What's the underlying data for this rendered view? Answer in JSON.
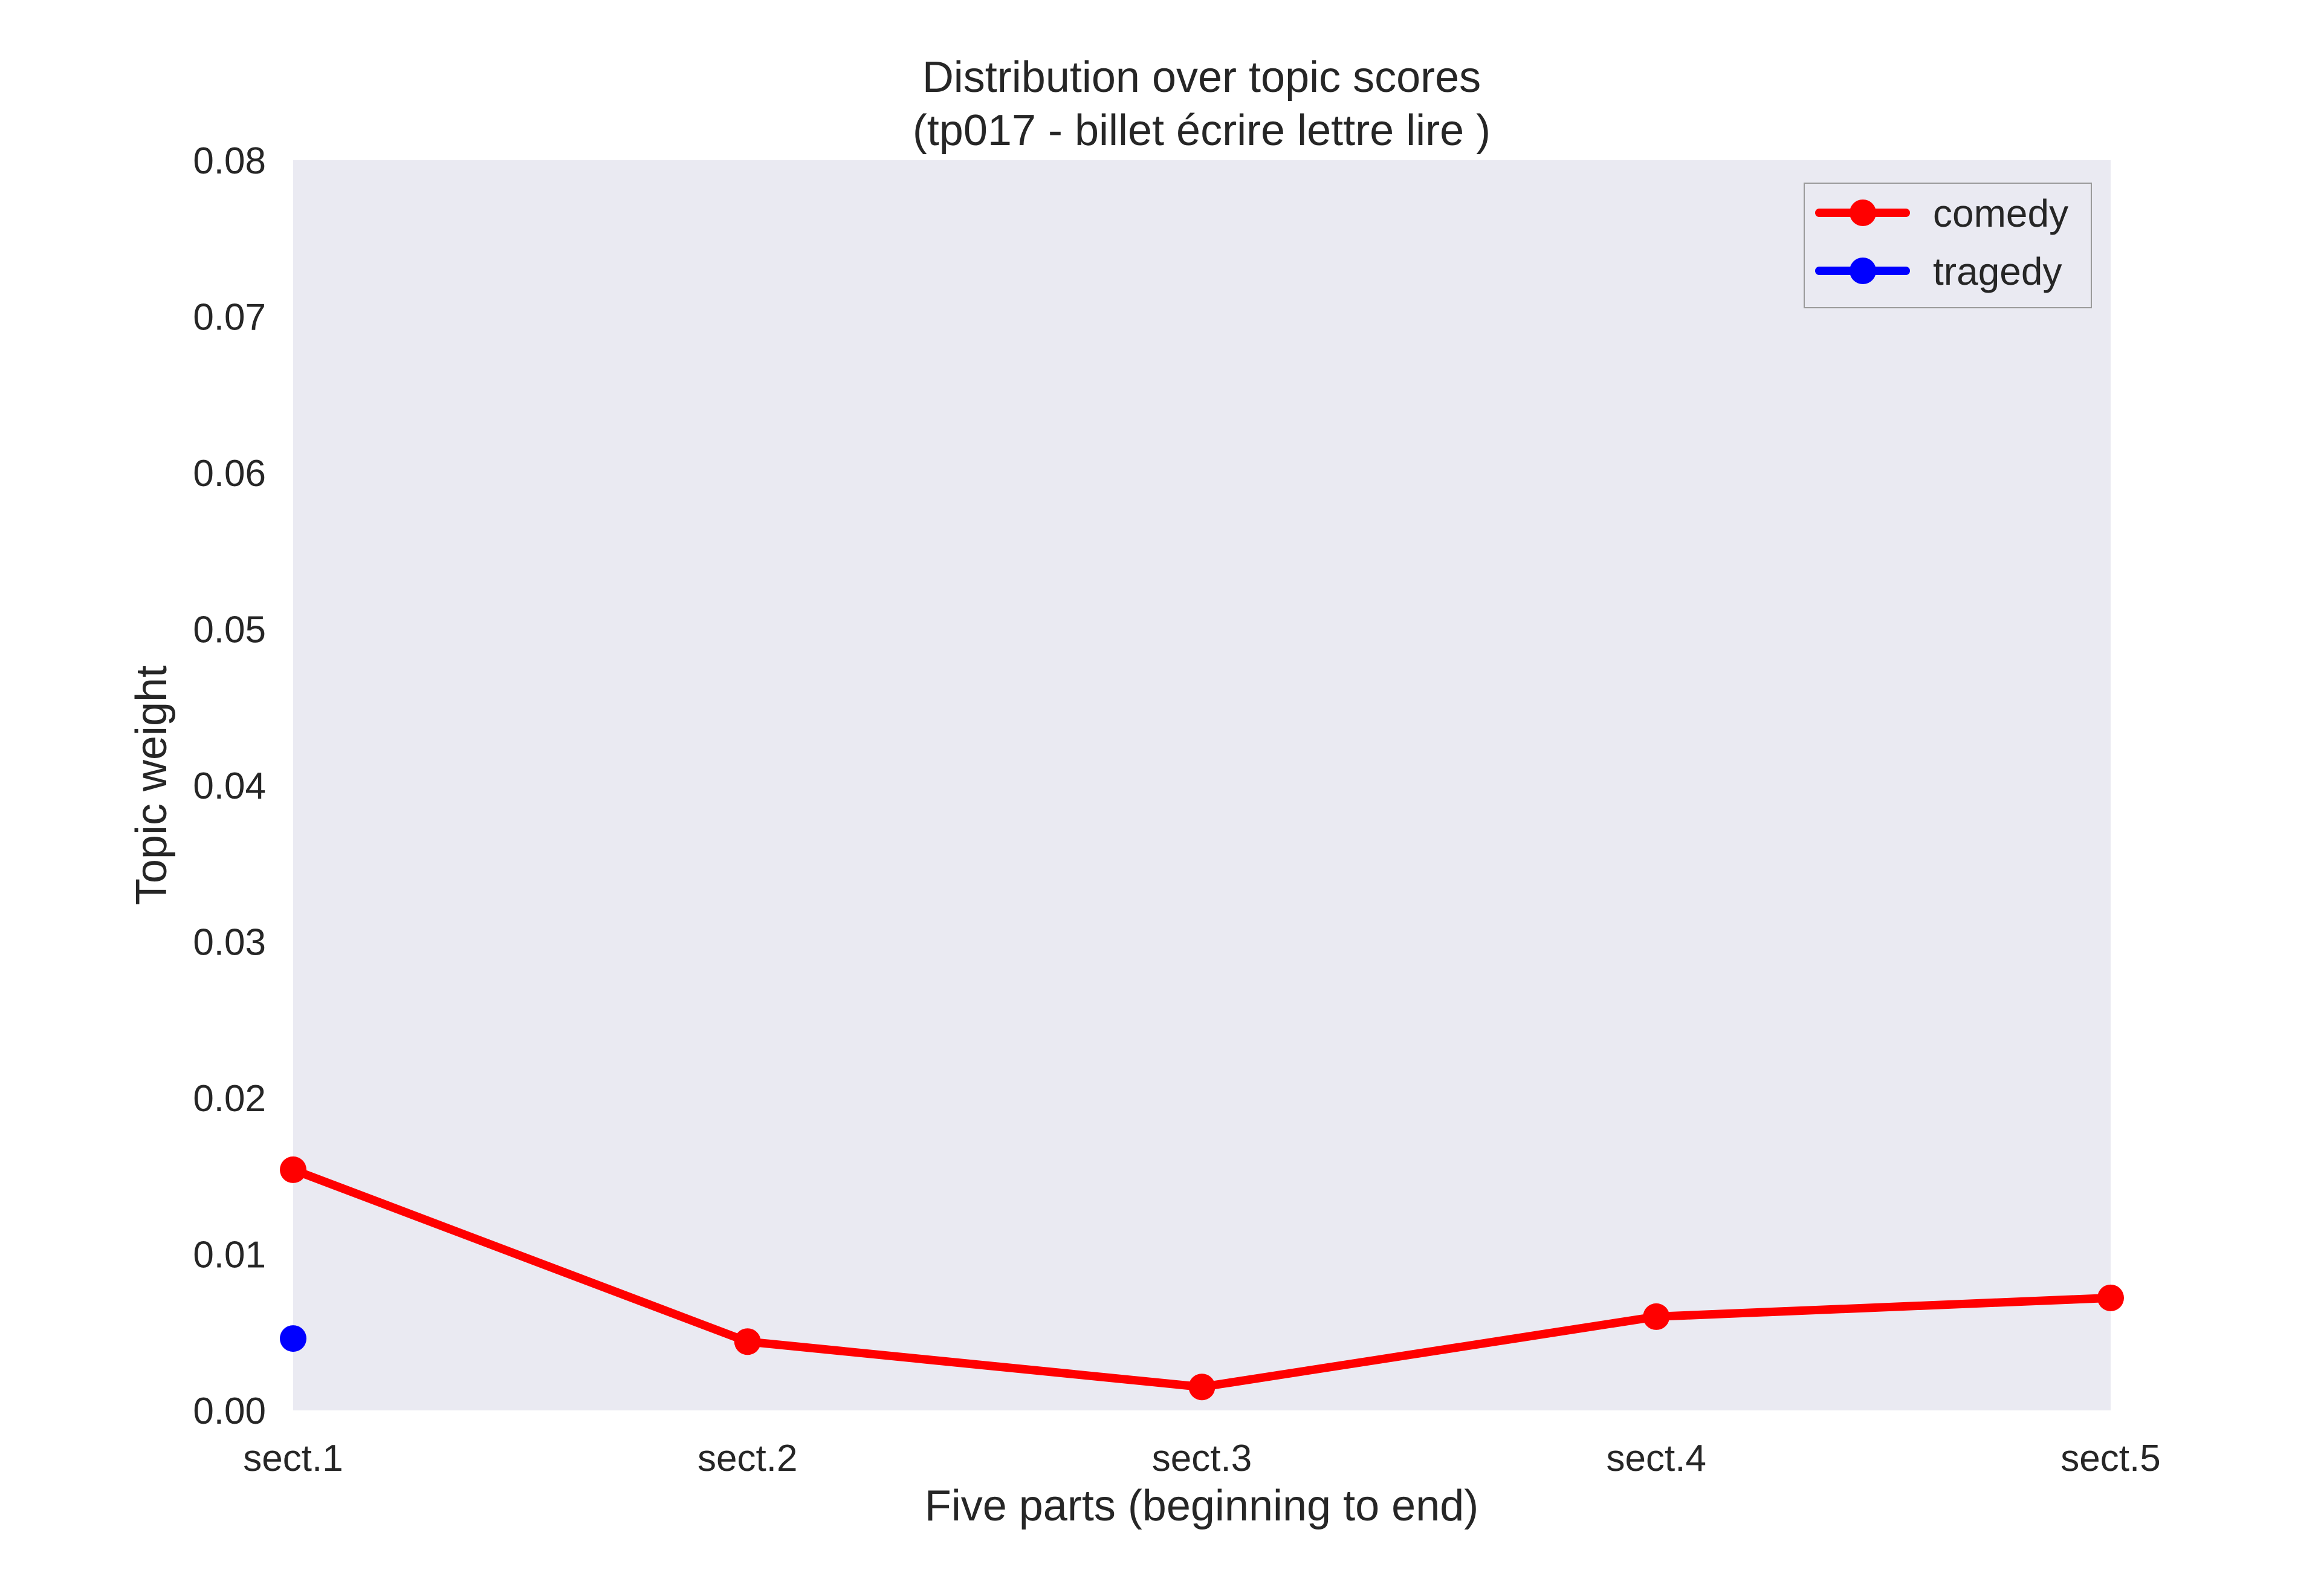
{
  "chart_data": {
    "type": "line",
    "title_line1": "Distribution over topic scores",
    "title_line2": "(tp017 - billet écrire lettre lire )",
    "xlabel": "Five parts (beginning to end)",
    "ylabel": "Topic weight",
    "categories": [
      "sect.1",
      "sect.2",
      "sect.3",
      "sect.4",
      "sect.5"
    ],
    "ylim": [
      0,
      0.08
    ],
    "yticks": [
      "0.00",
      "0.01",
      "0.02",
      "0.03",
      "0.04",
      "0.05",
      "0.06",
      "0.07",
      "0.08"
    ],
    "grid": false,
    "legend_position": "top-right",
    "series": [
      {
        "name": "comedy",
        "color": "#ff0000",
        "values": [
          0.0154,
          0.0044,
          0.0015,
          0.006,
          0.0072
        ]
      },
      {
        "name": "tragedy",
        "color": "#0000ff",
        "values": [
          0.0046,
          null,
          null,
          null,
          null
        ]
      }
    ],
    "plot_background": "#eaeaf2"
  }
}
